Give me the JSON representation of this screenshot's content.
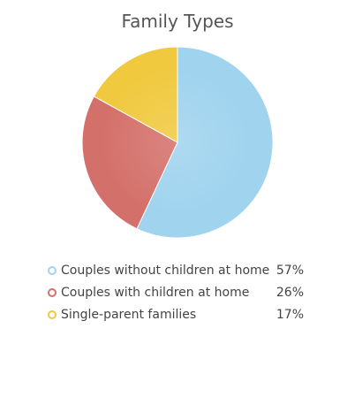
{
  "chart_data": {
    "type": "pie",
    "title": "Family Types",
    "slices": [
      {
        "label": "Couples without children at home",
        "value": 57,
        "value_label": "57%",
        "color": "#9fd3ee"
      },
      {
        "label": "Couples with children at home",
        "value": 26,
        "value_label": "26%",
        "color": "#d4706a"
      },
      {
        "label": "Single-parent families",
        "value": 17,
        "value_label": "17%",
        "color": "#f0c93f"
      }
    ],
    "legend_position": "bottom"
  }
}
